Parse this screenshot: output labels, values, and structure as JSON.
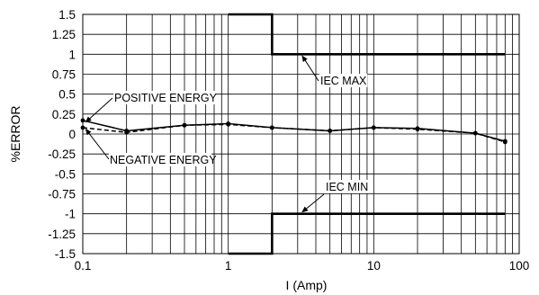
{
  "chart_data": {
    "type": "line",
    "title": "",
    "xlabel": "I (Amp)",
    "ylabel": "%ERROR",
    "x_scale": "log",
    "xlim": [
      0.1,
      100
    ],
    "ylim": [
      -1.5,
      1.5
    ],
    "grid": true,
    "xtick_labels": [
      {
        "value": 0.1,
        "label": "0.1"
      },
      {
        "value": 1,
        "label": "1"
      },
      {
        "value": 10,
        "label": "10"
      },
      {
        "value": 100,
        "label": "100"
      }
    ],
    "ytick_labels": [
      {
        "value": 1.5,
        "label": "1.5"
      },
      {
        "value": 1.25,
        "label": "1.25"
      },
      {
        "value": 1,
        "label": "1"
      },
      {
        "value": 0.75,
        "label": "0.75"
      },
      {
        "value": 0.5,
        "label": "0.5"
      },
      {
        "value": 0.25,
        "label": "0.25"
      },
      {
        "value": 0,
        "label": "0"
      },
      {
        "value": -0.25,
        "label": "-0.25"
      },
      {
        "value": -0.5,
        "label": "-0.5"
      },
      {
        "value": -0.75,
        "label": "-0.75"
      },
      {
        "value": -1,
        "label": "-1"
      },
      {
        "value": -1.25,
        "label": "-1.25"
      },
      {
        "value": -1.5,
        "label": "-1.5"
      }
    ],
    "series": [
      {
        "name": "POSITIVE ENERGY",
        "style": "solid",
        "color": "#000000",
        "x": [
          0.1,
          0.2,
          0.5,
          1,
          2,
          5,
          10,
          20,
          50,
          80
        ],
        "y": [
          0.17,
          0.04,
          0.11,
          0.13,
          0.08,
          0.04,
          0.08,
          0.07,
          0.01,
          -0.09
        ]
      },
      {
        "name": "NEGATIVE ENERGY",
        "style": "dashed",
        "color": "#000000",
        "x": [
          0.1,
          0.2,
          0.5,
          1,
          2,
          5,
          10,
          20,
          50,
          80
        ],
        "y": [
          0.08,
          0.02,
          0.11,
          0.12,
          0.08,
          0.04,
          0.08,
          0.06,
          0.01,
          -0.1
        ]
      }
    ],
    "limits": [
      {
        "name": "IEC MAX",
        "x": [
          1,
          1,
          2,
          2,
          80
        ],
        "y": [
          1.5,
          1.5,
          1.5,
          1.0,
          1.0
        ]
      },
      {
        "name": "IEC MIN",
        "x": [
          1,
          1,
          2,
          2,
          80
        ],
        "y": [
          -1.5,
          -1.5,
          -1.5,
          -1.0,
          -1.0
        ]
      }
    ],
    "annotations": [
      {
        "text": "POSITIVE ENERGY",
        "target_series": "POSITIVE ENERGY"
      },
      {
        "text": "NEGATIVE ENERGY",
        "target_series": "NEGATIVE ENERGY"
      },
      {
        "text": "IEC MAX",
        "target_series": "IEC MAX"
      },
      {
        "text": "IEC MIN",
        "target_series": "IEC MIN"
      }
    ]
  }
}
